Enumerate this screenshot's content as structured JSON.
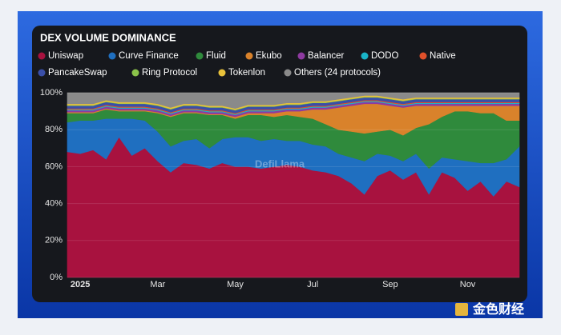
{
  "chart_data": {
    "type": "stacked_area",
    "title": "DEX VOLUME DOMINANCE",
    "watermark": "DefiLlama",
    "categories": [
      null,
      "2025",
      null,
      null,
      null,
      null,
      null,
      "Mar",
      null,
      null,
      null,
      null,
      null,
      "May",
      null,
      null,
      null,
      null,
      null,
      "Jul",
      null,
      null,
      null,
      null,
      null,
      "Sep",
      null,
      null,
      null,
      null,
      null,
      "Nov",
      null,
      null,
      null,
      null
    ],
    "ylim": [
      0,
      100
    ],
    "yticks": [
      {
        "value": 0,
        "label": "0%"
      },
      {
        "value": 20,
        "label": "20%"
      },
      {
        "value": 40,
        "label": "40%"
      },
      {
        "value": 60,
        "label": "60%"
      },
      {
        "value": 80,
        "label": "80%"
      },
      {
        "value": 100,
        "label": "100%"
      }
    ],
    "grid": true,
    "series": [
      {
        "name": "Uniswap",
        "color": "#a8123f",
        "values": [
          68,
          67,
          69,
          64,
          76,
          66,
          70,
          63,
          57,
          62,
          61,
          59,
          62,
          60,
          60,
          59,
          60,
          61,
          60,
          58,
          57,
          55,
          51,
          45,
          55,
          58,
          53,
          57,
          45,
          57,
          54,
          47,
          52,
          44,
          52,
          49
        ]
      },
      {
        "name": "Curve Finance",
        "color": "#1f6fc0",
        "values": [
          16,
          18,
          16,
          22,
          10,
          20,
          15,
          16,
          14,
          12,
          14,
          11,
          13,
          16,
          16,
          15,
          15,
          13,
          14,
          14,
          14,
          12,
          14,
          18,
          12,
          8,
          10,
          10,
          14,
          8,
          10,
          16,
          10,
          18,
          12,
          22
        ]
      },
      {
        "name": "Fluid",
        "color": "#2f8a3c",
        "values": [
          5,
          4,
          4,
          5,
          4,
          4,
          5,
          10,
          16,
          15,
          14,
          18,
          13,
          10,
          12,
          14,
          12,
          14,
          13,
          14,
          12,
          13,
          14,
          15,
          12,
          14,
          14,
          14,
          24,
          22,
          26,
          27,
          27,
          27,
          21,
          14
        ]
      },
      {
        "name": "Ekubo",
        "color": "#d9822b",
        "values": [
          0.5,
          0.5,
          0.5,
          0.5,
          0.5,
          0.5,
          0.5,
          0.5,
          0.5,
          0.5,
          0.5,
          0.5,
          0.5,
          1,
          1,
          1,
          2,
          2,
          3,
          5,
          8,
          12,
          14,
          16,
          15,
          13,
          15,
          12,
          10,
          6,
          3,
          3,
          4,
          4,
          8,
          8
        ]
      },
      {
        "name": "Balancer",
        "color": "#8e3aa0",
        "values": [
          1,
          1,
          1,
          1,
          1,
          1,
          1,
          1,
          1,
          1,
          1,
          1,
          1,
          1,
          1,
          1,
          1,
          1,
          1,
          1,
          1,
          1,
          1,
          1,
          1,
          1,
          1,
          1,
          1,
          1,
          1,
          1,
          1,
          1,
          1,
          1
        ]
      },
      {
        "name": "DODO",
        "color": "#19b5c8",
        "values": [
          0.5,
          0.5,
          0.5,
          0.5,
          0.5,
          0.5,
          0.5,
          0.5,
          0.5,
          0.5,
          0.5,
          0.5,
          0.5,
          0.5,
          0.5,
          0.5,
          0.5,
          0.5,
          0.5,
          0.5,
          0.5,
          0.5,
          0.5,
          0.5,
          0.5,
          0.5,
          0.5,
          0.5,
          0.5,
          0.5,
          0.5,
          0.5,
          0.5,
          0.5,
          0.5,
          0.5
        ]
      },
      {
        "name": "Native",
        "color": "#e0502a",
        "values": [
          0.5,
          0.5,
          0.5,
          0.5,
          0.5,
          0.5,
          0.5,
          0.5,
          0.5,
          0.5,
          0.5,
          0.5,
          0.5,
          0.5,
          0.5,
          0.5,
          0.5,
          0.5,
          0.5,
          0.5,
          0.5,
          0.5,
          0.5,
          0.5,
          0.5,
          0.5,
          0.5,
          0.5,
          0.5,
          0.5,
          0.5,
          0.5,
          0.5,
          0.5,
          0.5,
          0.5
        ]
      },
      {
        "name": "PancakeSwap",
        "color": "#3a4fa8",
        "values": [
          1.5,
          1.5,
          1.5,
          1.5,
          1.5,
          1.5,
          1.5,
          1.5,
          1.5,
          1.5,
          1.5,
          1.5,
          1.5,
          1.5,
          1.5,
          1.5,
          1.5,
          1.5,
          1.5,
          1.5,
          1.5,
          1.5,
          1.5,
          1.5,
          1.5,
          1.5,
          1.5,
          1.5,
          1.5,
          1.5,
          1.5,
          1.5,
          1.5,
          1.5,
          1.5,
          1.5
        ]
      },
      {
        "name": "Ring Protocol",
        "color": "#8bc34a",
        "values": [
          0.3,
          0.3,
          0.3,
          0.3,
          0.3,
          0.3,
          0.3,
          0.3,
          0.3,
          0.3,
          0.3,
          0.3,
          0.3,
          0.3,
          0.3,
          0.3,
          0.3,
          0.3,
          0.3,
          0.3,
          0.3,
          0.3,
          0.3,
          0.3,
          0.3,
          0.3,
          0.3,
          0.3,
          0.3,
          0.3,
          0.3,
          0.3,
          0.3,
          0.3,
          0.3,
          0.3
        ]
      },
      {
        "name": "Tokenlon",
        "color": "#e8c13a",
        "values": [
          0.7,
          0.7,
          0.7,
          0.7,
          0.7,
          0.7,
          0.7,
          0.7,
          0.7,
          0.7,
          0.7,
          0.7,
          0.7,
          0.7,
          0.7,
          0.7,
          0.7,
          0.7,
          0.7,
          0.7,
          0.7,
          0.7,
          0.7,
          0.7,
          0.7,
          0.7,
          0.7,
          0.7,
          0.7,
          0.7,
          0.7,
          0.7,
          0.7,
          0.7,
          0.7,
          0.7
        ]
      },
      {
        "name": "Others (24 protocols)",
        "color": "#8a8a8a",
        "values": [
          6,
          6,
          6,
          4,
          5,
          5,
          5,
          6,
          8,
          6,
          6,
          7,
          7,
          8.5,
          6.5,
          6.5,
          6.5,
          5.5,
          5.5,
          4.5,
          4.5,
          3.5,
          2.5,
          1.5,
          1.5,
          2.5,
          3.5,
          2.5,
          2.5,
          2.5,
          2.5,
          2.5,
          2.5,
          2.5,
          2.5,
          2.5
        ]
      }
    ]
  },
  "site_watermark": "金色财经"
}
